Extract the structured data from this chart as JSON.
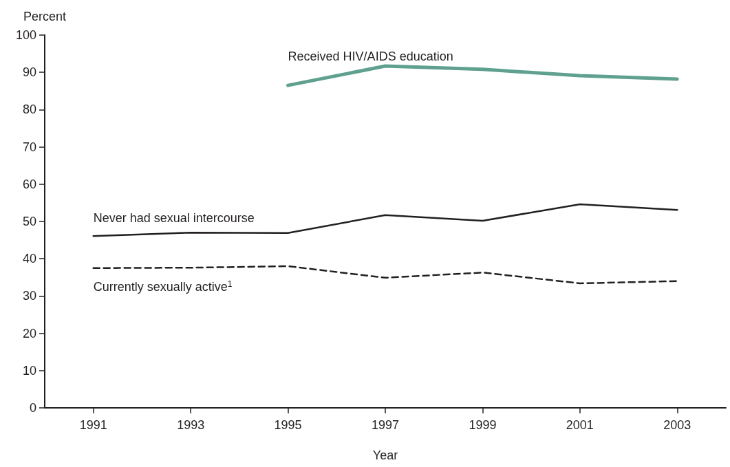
{
  "chart_data": {
    "type": "line",
    "xlabel": "Year",
    "ylabel": "Percent",
    "xlim": [
      1990,
      2004
    ],
    "xticks": [
      1991,
      1993,
      1995,
      1997,
      1999,
      2001,
      2003
    ],
    "ylim": [
      0,
      100
    ],
    "yticks": [
      0,
      10,
      20,
      30,
      40,
      50,
      60,
      70,
      80,
      90,
      100
    ],
    "grid": false,
    "legend": false,
    "marker": "none",
    "series": [
      {
        "name": "Received HIV/AIDS education",
        "color": "#5fa08f",
        "line_style": "solid",
        "x": [
          1995,
          1997,
          1999,
          2001,
          2003
        ],
        "values": [
          86.5,
          91.7,
          90.8,
          89.1,
          88.2
        ]
      },
      {
        "name": "Never had sexual intercourse",
        "color": "#231f20",
        "line_style": "solid",
        "x": [
          1991,
          1993,
          1995,
          1997,
          1999,
          2001,
          2003
        ],
        "values": [
          46.1,
          47.0,
          46.9,
          51.7,
          50.2,
          54.6,
          53.1
        ]
      },
      {
        "name": "Currently sexually active$^{1}$",
        "color": "#231f20",
        "line_style": "dashed",
        "x": [
          1991,
          1993,
          1995,
          1997,
          1999,
          2001,
          2003
        ],
        "values": [
          37.5,
          37.6,
          38.0,
          34.9,
          36.3,
          33.4,
          34.0
        ]
      }
    ]
  }
}
